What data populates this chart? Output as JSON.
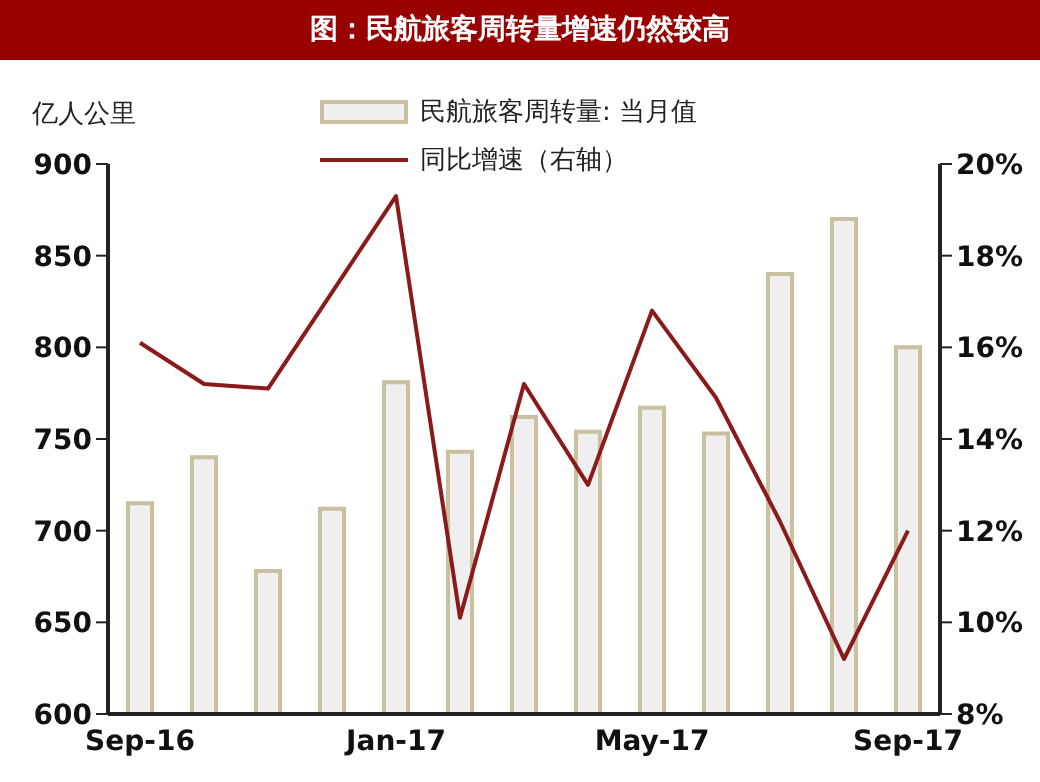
{
  "chart_data": {
    "type": "bar",
    "title": "图：民航旅客周转量增速仍然较高",
    "ylabel": "亿人公里",
    "categories": [
      "Sep-16",
      null,
      null,
      null,
      "Jan-17",
      null,
      null,
      null,
      "May-17",
      null,
      null,
      null,
      "Sep-17"
    ],
    "series": [
      {
        "name": "民航旅客周转量: 当月值",
        "color": "#efefef",
        "values": [
          715,
          740,
          678,
          712,
          781,
          743,
          762,
          754,
          767,
          753,
          840,
          870,
          800
        ]
      },
      {
        "name": "同比增速（右轴）",
        "type": "line",
        "axis": "y2",
        "color": "#8b1a1a",
        "values": [
          16.1,
          15.2,
          15.1,
          17.2,
          19.3,
          10.1,
          15.2,
          13.0,
          16.8,
          14.9,
          12.2,
          9.2,
          12.0
        ]
      }
    ],
    "ylim": [
      600,
      900
    ],
    "yticks": [
      600,
      650,
      700,
      750,
      800,
      850,
      900
    ],
    "y2lim": [
      8,
      20
    ],
    "y2ticks": [
      {
        "value": 8,
        "label": "8%"
      },
      {
        "value": 10,
        "label": "10%"
      },
      {
        "value": 12,
        "label": "12%"
      },
      {
        "value": 14,
        "label": "14%"
      },
      {
        "value": 16,
        "label": "16%"
      },
      {
        "value": 18,
        "label": "18%"
      },
      {
        "value": 20,
        "label": "20%"
      }
    ],
    "grid": false,
    "legend": "top",
    "marker": "none",
    "line_style": "solid"
  }
}
